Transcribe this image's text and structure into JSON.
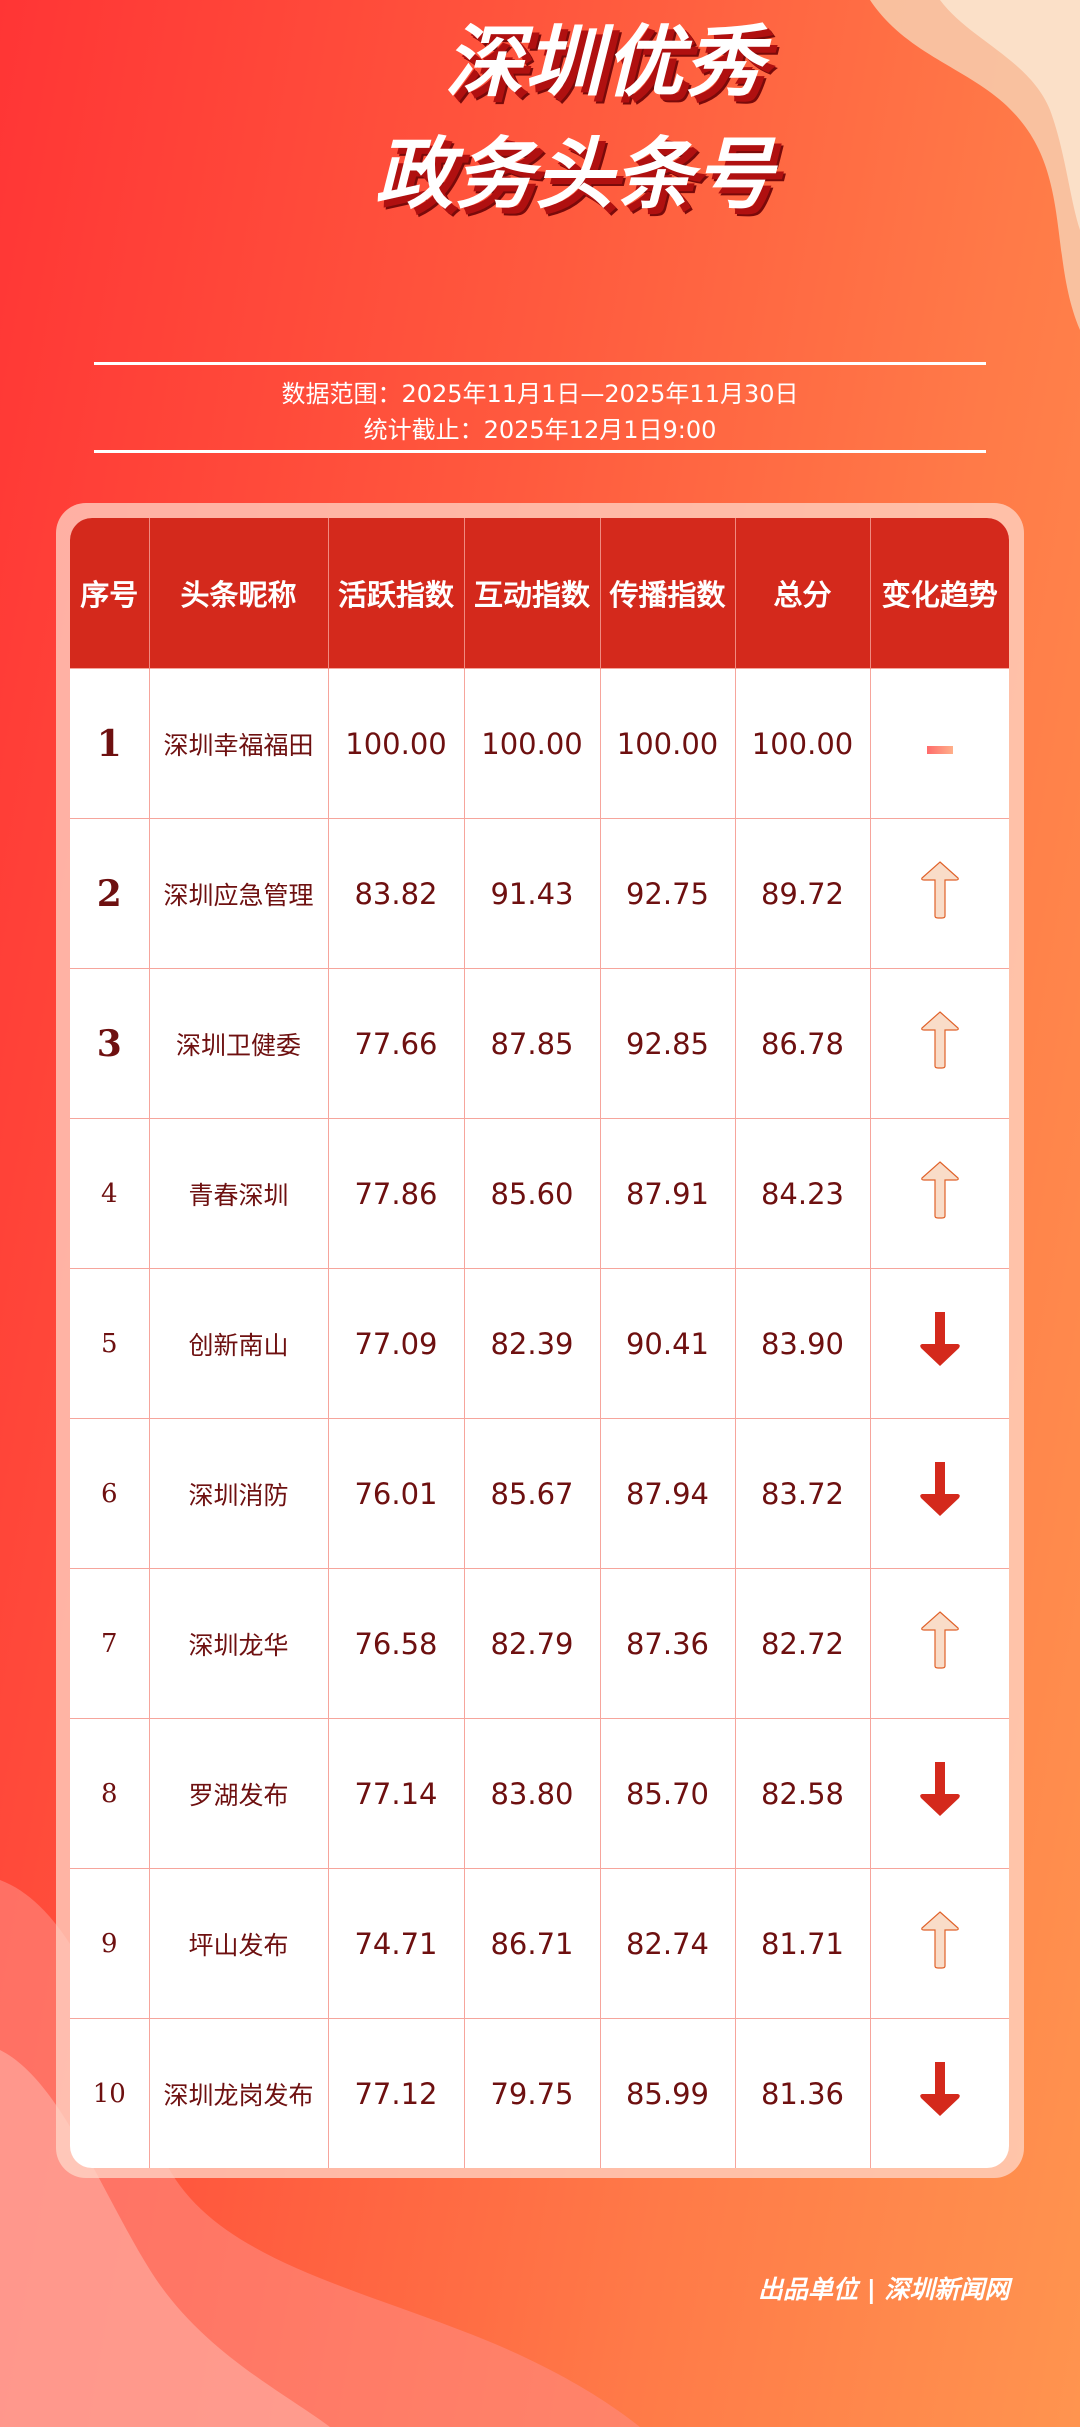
{
  "title": {
    "line1": "深圳优秀",
    "line2": "政务头条号"
  },
  "meta": {
    "range": "数据范围：2025年11月1日—2025年11月30日",
    "cutoff": "统计截止：2025年12月1日9:00"
  },
  "colors": {
    "header_bg": "#d4291c",
    "text": "#6e1010",
    "up": "#f9d9c4",
    "down": "#d4291c"
  },
  "table": {
    "headers": [
      "序号",
      "头条昵称",
      "活跃指数",
      "互动指数",
      "传播指数",
      "总分",
      "变化趋势"
    ],
    "rows": [
      {
        "rank": "1",
        "name": "深圳幸福福田",
        "active": "100.00",
        "interact": "100.00",
        "spread": "100.00",
        "total": "100.00",
        "trend": "flat"
      },
      {
        "rank": "2",
        "name": "深圳应急管理",
        "active": "83.82",
        "interact": "91.43",
        "spread": "92.75",
        "total": "89.72",
        "trend": "up"
      },
      {
        "rank": "3",
        "name": "深圳卫健委",
        "active": "77.66",
        "interact": "87.85",
        "spread": "92.85",
        "total": "86.78",
        "trend": "up"
      },
      {
        "rank": "4",
        "name": "青春深圳",
        "active": "77.86",
        "interact": "85.60",
        "spread": "87.91",
        "total": "84.23",
        "trend": "up"
      },
      {
        "rank": "5",
        "name": "创新南山",
        "active": "77.09",
        "interact": "82.39",
        "spread": "90.41",
        "total": "83.90",
        "trend": "down"
      },
      {
        "rank": "6",
        "name": "深圳消防",
        "active": "76.01",
        "interact": "85.67",
        "spread": "87.94",
        "total": "83.72",
        "trend": "down"
      },
      {
        "rank": "7",
        "name": "深圳龙华",
        "active": "76.58",
        "interact": "82.79",
        "spread": "87.36",
        "total": "82.72",
        "trend": "up"
      },
      {
        "rank": "8",
        "name": "罗湖发布",
        "active": "77.14",
        "interact": "83.80",
        "spread": "85.70",
        "total": "82.58",
        "trend": "down"
      },
      {
        "rank": "9",
        "name": "坪山发布",
        "active": "74.71",
        "interact": "86.71",
        "spread": "82.74",
        "total": "81.71",
        "trend": "up"
      },
      {
        "rank": "10",
        "name": "深圳龙岗发布",
        "active": "77.12",
        "interact": "79.75",
        "spread": "85.99",
        "total": "81.36",
        "trend": "down"
      }
    ]
  },
  "footer": "出品单位 | 深圳新闻网"
}
